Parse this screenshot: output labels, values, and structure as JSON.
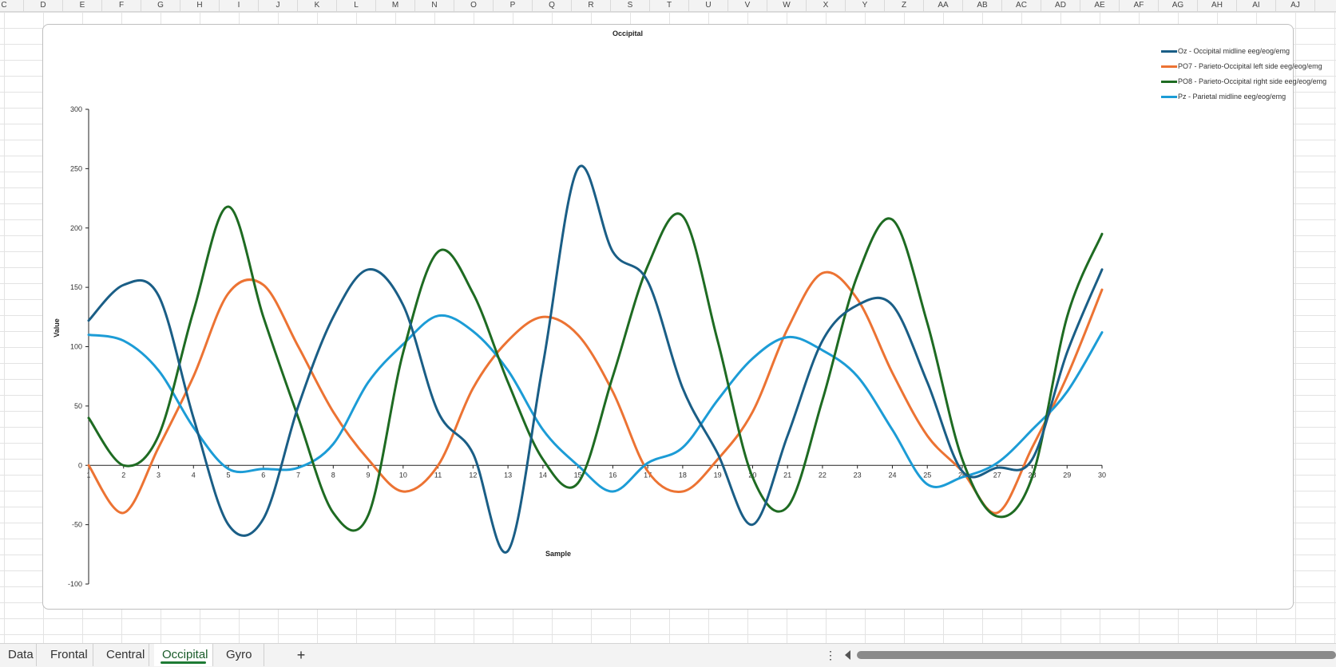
{
  "columns": [
    "C",
    "D",
    "E",
    "F",
    "G",
    "H",
    "I",
    "J",
    "K",
    "L",
    "M",
    "N",
    "O",
    "P",
    "Q",
    "R",
    "S",
    "T",
    "U",
    "V",
    "W",
    "X",
    "Y",
    "Z",
    "AA",
    "AB",
    "AC",
    "AD",
    "AE",
    "AF",
    "AG",
    "AH",
    "AI",
    "AJ"
  ],
  "sheet_tabs": [
    {
      "label": "Data",
      "active": false
    },
    {
      "label": "Frontal",
      "active": false
    },
    {
      "label": "Central",
      "active": false
    },
    {
      "label": "Occipital",
      "active": true
    },
    {
      "label": "Gyro",
      "active": false
    }
  ],
  "add_sheet_icon": "plus-icon",
  "more_icon": "vertical-ellipsis-icon",
  "chart_data": {
    "type": "line",
    "title": "Occipital",
    "xlabel": "Sample",
    "ylabel": "Value",
    "ylim": [
      -100,
      300
    ],
    "yticks": [
      -100,
      -50,
      0,
      50,
      100,
      150,
      200,
      250,
      300
    ],
    "x": [
      1,
      2,
      3,
      4,
      5,
      6,
      7,
      8,
      9,
      10,
      11,
      12,
      13,
      14,
      15,
      16,
      17,
      18,
      19,
      20,
      21,
      22,
      23,
      24,
      25,
      26,
      27,
      28,
      29,
      30
    ],
    "smooth": true,
    "grid": false,
    "legend_position": "top-right",
    "series": [
      {
        "name": "Oz - Occipital midline eeg/eog/emg",
        "color": "#1a5e86",
        "values": [
          122,
          152,
          143,
          40,
          -50,
          -45,
          50,
          125,
          165,
          135,
          45,
          10,
          -72,
          85,
          250,
          180,
          155,
          65,
          10,
          -50,
          25,
          105,
          135,
          135,
          70,
          -5,
          -2,
          5,
          95,
          165
        ]
      },
      {
        "name": "PO7 - Parieto-Occipital left side eeg/eog/emg",
        "color": "#ec7333",
        "values": [
          0,
          -40,
          15,
          75,
          145,
          152,
          100,
          45,
          5,
          -22,
          0,
          65,
          105,
          125,
          110,
          62,
          -5,
          -22,
          5,
          45,
          115,
          162,
          140,
          78,
          25,
          -5,
          -40,
          15,
          75,
          148
        ]
      },
      {
        "name": "PO8 - Parieto-Occipital right side eeg/eog/emg",
        "color": "#1e6b22",
        "values": [
          40,
          0,
          25,
          130,
          218,
          125,
          40,
          -40,
          -42,
          95,
          180,
          145,
          70,
          5,
          -15,
          75,
          168,
          210,
          105,
          -10,
          -35,
          55,
          160,
          207,
          120,
          5,
          -43,
          -10,
          125,
          195
        ]
      },
      {
        "name": "Pz - Parietal midline eeg/eog/emg",
        "color": "#1c9cd6",
        "values": [
          110,
          105,
          80,
          32,
          -3,
          -3,
          -2,
          18,
          70,
          102,
          126,
          113,
          80,
          30,
          0,
          -22,
          2,
          15,
          55,
          90,
          108,
          97,
          75,
          30,
          -16,
          -10,
          2,
          30,
          62,
          112
        ]
      }
    ]
  }
}
